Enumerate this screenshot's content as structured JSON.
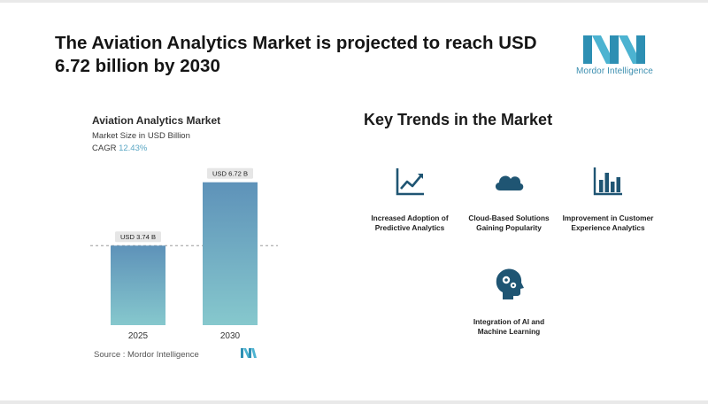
{
  "header": {
    "title": "The Aviation Analytics Market is projected to reach USD 6.72 billion by 2030",
    "logo_text": "Mordor Intelligence"
  },
  "chart_panel": {
    "title": "Aviation Analytics Market",
    "subtitle": "Market Size in USD Billion",
    "cagr_label": "CAGR",
    "cagr_value": "12.43%",
    "source": "Source :  Mordor Intelligence"
  },
  "chart_data": {
    "type": "bar",
    "title": "Aviation Analytics Market",
    "ylabel": "Market Size in USD Billion",
    "categories": [
      "2025",
      "2030"
    ],
    "values": [
      3.74,
      6.72
    ],
    "data_labels": [
      "USD 3.74 B",
      "USD 6.72 B"
    ],
    "ylim": [
      0,
      7.5
    ],
    "reference_line": 3.74,
    "grid": false
  },
  "trends": {
    "title": "Key Trends in the Market",
    "items": [
      {
        "label": "Increased Adoption of Predictive Analytics",
        "icon": "line-chart-icon"
      },
      {
        "label": "Cloud-Based Solutions Gaining Popularity",
        "icon": "cloud-icon"
      },
      {
        "label": "Improvement in Customer Experience Analytics",
        "icon": "bar-chart-icon"
      },
      {
        "label": "Integration of AI and Machine Learning",
        "icon": "head-gears-icon"
      }
    ]
  },
  "colors": {
    "bar_top": "#5e92b9",
    "bar_bottom": "#86c8cd",
    "icon_dark": "#1f5573",
    "accent": "#5aa7c4"
  }
}
